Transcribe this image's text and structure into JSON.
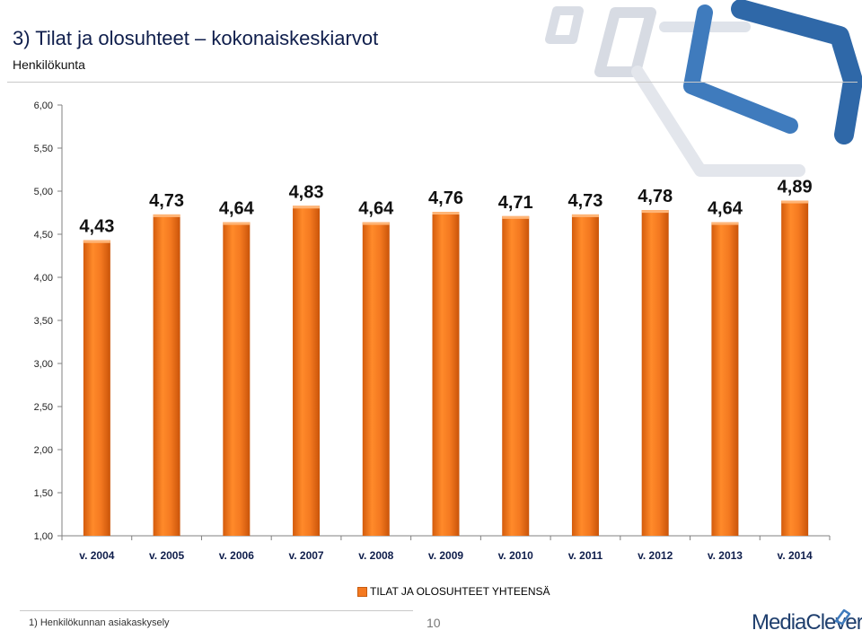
{
  "header": {
    "title": "3) Tilat ja olosuhteet – kokonaiskeskiarvot",
    "subtitle": "Henkilökunta"
  },
  "chart_data": {
    "type": "bar",
    "categories": [
      "v. 2004",
      "v. 2005",
      "v. 2006",
      "v. 2007",
      "v. 2008",
      "v. 2009",
      "v. 2010",
      "v. 2011",
      "v. 2012",
      "v. 2013",
      "v. 2014"
    ],
    "series": [
      {
        "name": "TILAT JA OLOSUHTEET YHTEENSÄ",
        "values": [
          4.43,
          4.73,
          4.64,
          4.83,
          4.64,
          4.76,
          4.71,
          4.73,
          4.78,
          4.64,
          4.89
        ]
      }
    ],
    "value_labels": [
      "4,43",
      "4,73",
      "4,64",
      "4,83",
      "4,64",
      "4,76",
      "4,71",
      "4,73",
      "4,78",
      "4,64",
      "4,89"
    ],
    "y_ticks": [
      "1,00",
      "1,50",
      "2,00",
      "2,50",
      "3,00",
      "3,50",
      "4,00",
      "4,50",
      "5,00",
      "5,50",
      "6,00"
    ],
    "ylim": [
      1,
      6
    ],
    "grid": false,
    "legend_position": "bottom-center",
    "bar_color": "#f47920"
  },
  "footer": {
    "footnote": "1) Henkilökunnan asiakaskysely",
    "page_number": "10",
    "brand": "MediaClever"
  }
}
